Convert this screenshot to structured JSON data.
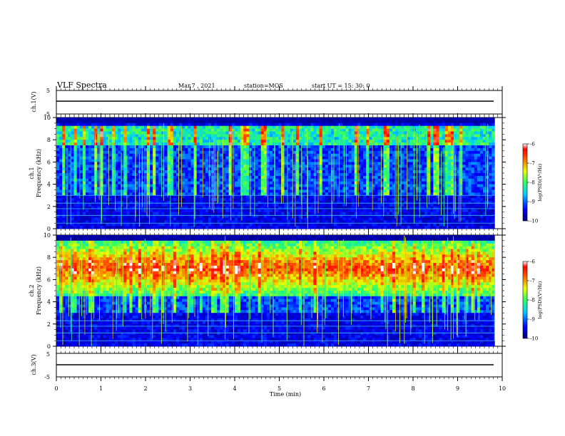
{
  "header": {
    "title": "VLF Spectra",
    "date": "Mar.7 , 2021",
    "station": "station=MOS",
    "start": "start UT =  15: 30: 0"
  },
  "chart_data": [
    {
      "type": "line",
      "panel": "ch1-waveform",
      "ylabel": "ch.1(V)",
      "ylim": [
        -5,
        5
      ],
      "y_ticks": [
        "5",
        "-5"
      ],
      "series": [
        {
          "x": [
            0,
            9.83
          ],
          "y": [
            0,
            0
          ]
        }
      ]
    },
    {
      "type": "heatmap",
      "panel": "ch1-spectrogram",
      "ylabel_lines": [
        "ch.1",
        "Frequency (kHz)"
      ],
      "ylim": [
        0,
        10
      ],
      "y_ticks": [
        "0",
        "2",
        "4",
        "6",
        "8",
        "10"
      ],
      "xlim": [
        0,
        10
      ],
      "data_end_min": 9.83,
      "colorbar": {
        "label": "log(PSD)(V²/Hz)",
        "range": [
          -10,
          -6
        ],
        "ticks": [
          "-6",
          "-7",
          "-8",
          "-9",
          "-10"
        ]
      },
      "horizontal_lines_khz": [
        0.5,
        1.2,
        1.8,
        2.3,
        3.0
      ],
      "signal_band_khz": [
        7.5,
        9.2
      ]
    },
    {
      "type": "heatmap",
      "panel": "ch2-spectrogram",
      "ylabel_lines": [
        "ch.2",
        "Frequency (kHz)"
      ],
      "ylim": [
        0,
        10
      ],
      "y_ticks": [
        "0",
        "2",
        "4",
        "6",
        "8",
        "10"
      ],
      "xlim": [
        0,
        10
      ],
      "data_end_min": 9.83,
      "colorbar": {
        "label": "log(PSD)(V²/Hz)",
        "range": [
          -10,
          -6
        ],
        "ticks": [
          "-6",
          "-7",
          "-8",
          "-9",
          "-10"
        ]
      },
      "horizontal_lines_khz": [
        0.5,
        1.2,
        1.8,
        2.3
      ],
      "signal_band_khz": [
        4.5,
        9.5
      ]
    },
    {
      "type": "line",
      "panel": "ch3-waveform",
      "ylabel": "ch.3(V)",
      "ylim": [
        -5,
        5
      ],
      "y_ticks": [
        "5",
        "-5"
      ],
      "xlabel": "Time (min)",
      "x_ticks": [
        "0",
        "1",
        "2",
        "3",
        "4",
        "5",
        "6",
        "7",
        "8",
        "9",
        "10"
      ],
      "xlim": [
        0,
        10
      ],
      "series": [
        {
          "x": [
            0,
            9.83
          ],
          "y": [
            0,
            0
          ]
        }
      ]
    }
  ]
}
